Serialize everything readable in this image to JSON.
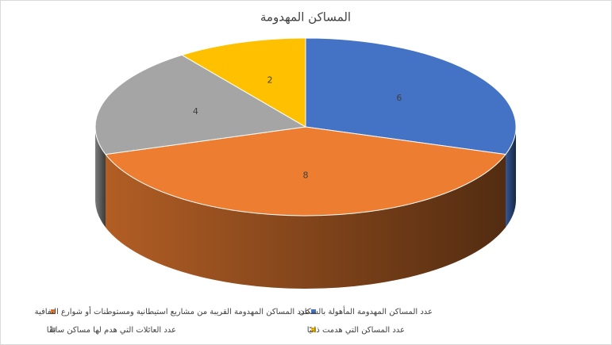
{
  "chart_data": {
    "type": "pie",
    "title": "المساكن المهدومة",
    "categories": [
      "عدد المساكن المهدومة المأهولة بالسكان",
      "عدد المساكن المهدومة القريبة من مشاريع استيطانية ومستوطنات أو شوارع التفافية",
      "عدد العائلات التي هدم لها مساكن سابقًا",
      "عدد المساكن التي هدمت ذاتيًا"
    ],
    "values": [
      6,
      8,
      4,
      2
    ],
    "colors": [
      "#4472c4",
      "#ed7d31",
      "#a5a5a5",
      "#ffc000"
    ]
  }
}
